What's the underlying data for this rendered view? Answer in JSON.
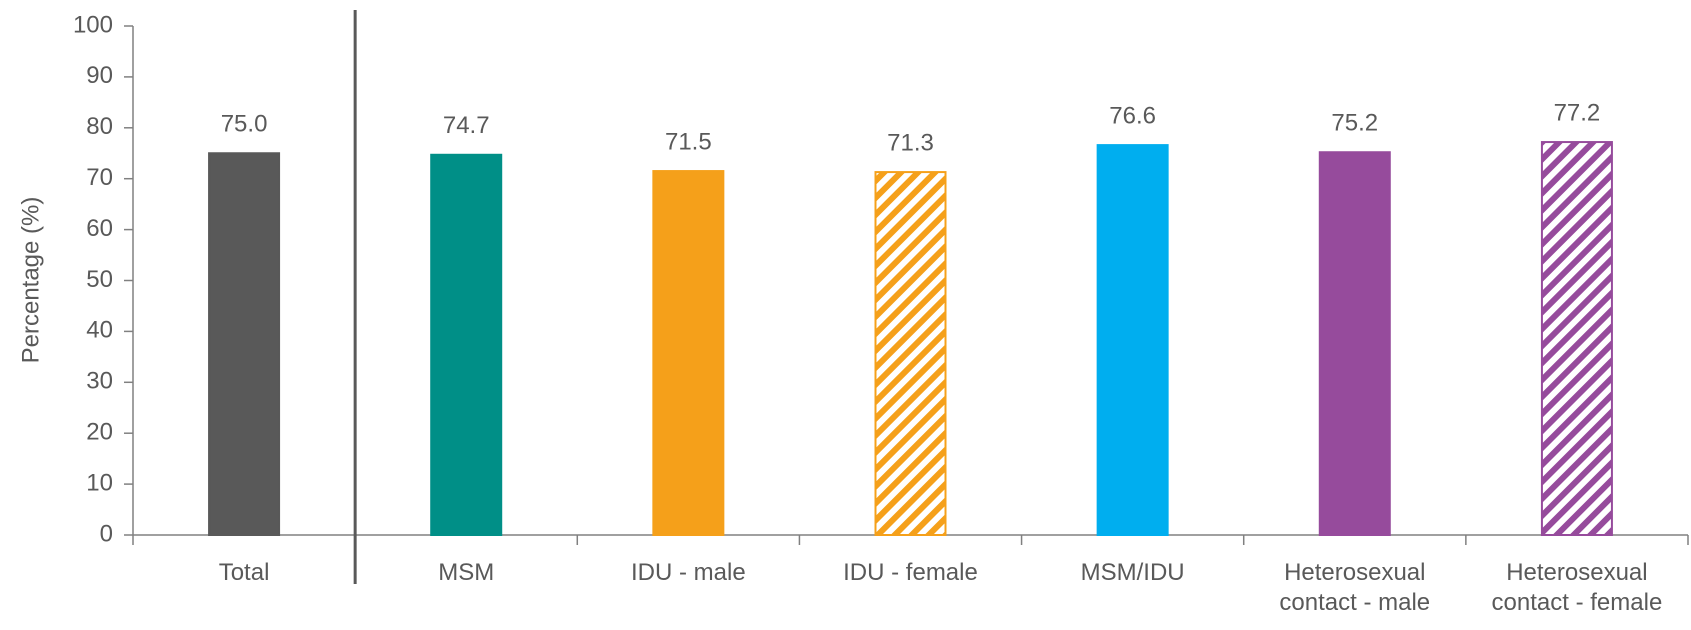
{
  "chart_data": {
    "type": "bar",
    "y_label": "Percentage (%)",
    "categories": [
      "Total",
      "MSM",
      "IDU - male",
      "IDU - female",
      "MSM/IDU",
      "Heterosexual contact - male",
      "Heterosexual contact - female"
    ],
    "values": [
      75.0,
      74.7,
      71.5,
      71.3,
      76.6,
      75.2,
      77.2
    ],
    "value_labels": [
      "75.0",
      "74.7",
      "71.5",
      "71.3",
      "76.6",
      "75.2",
      "77.2"
    ],
    "colors": [
      "#595959",
      "#008f87",
      "#f5a01a",
      "#f5a01a",
      "#00aeef",
      "#964b9c",
      "#964b9c"
    ],
    "patterns": [
      "solid",
      "solid",
      "solid",
      "hatched",
      "solid",
      "solid",
      "hatched"
    ],
    "ylim": [
      0,
      100
    ],
    "yticks": [
      0,
      10,
      20,
      30,
      40,
      50,
      60,
      70,
      80,
      90,
      100
    ],
    "grid": false
  }
}
